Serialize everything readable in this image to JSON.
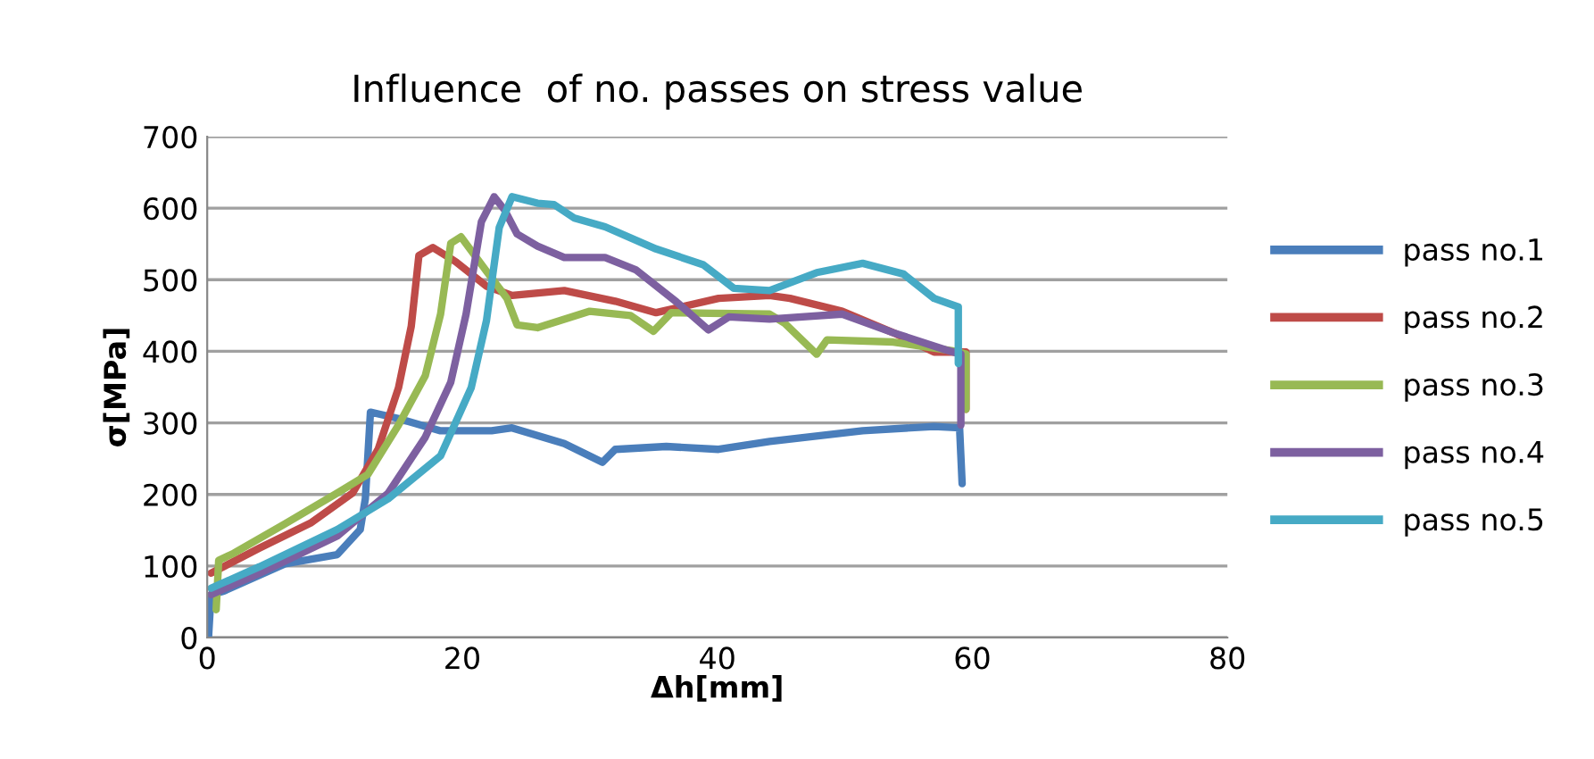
{
  "chart_data": {
    "type": "line",
    "title": "Influence  of no. passes on stress value",
    "xlabel": "Δh[mm]",
    "ylabel": "σ[MPa]",
    "xlim": [
      0,
      80
    ],
    "xticks": [
      0,
      20,
      40,
      60,
      80
    ],
    "ylim": [
      0,
      700
    ],
    "yticks": [
      0,
      100,
      200,
      300,
      400,
      500,
      600,
      700
    ],
    "grid": "y",
    "legend": "right",
    "marker": "none",
    "line_style": "solid",
    "series": [
      {
        "name": "pass no.1",
        "color": "#4a7ebb",
        "x": [
          0.1,
          0.3,
          1.3,
          6.1,
          10.2,
          12,
          12.4,
          12.8,
          15,
          18.3,
          22.3,
          23.9,
          28,
          31,
          32,
          36,
          40.1,
          44.1,
          51.4,
          57,
          59,
          59.2
        ],
        "values": [
          0,
          60,
          65,
          103,
          116,
          151,
          194,
          315,
          306,
          289,
          289,
          293,
          271,
          245,
          263,
          267,
          263,
          274,
          289,
          295,
          293,
          215
        ]
      },
      {
        "name": "pass no.2",
        "color": "#be4b48",
        "x": [
          0.3,
          4.1,
          8.1,
          11.4,
          13.4,
          15,
          16,
          16.6,
          17.7,
          19.5,
          21.9,
          23.9,
          28,
          32,
          35.2,
          40.1,
          44.1,
          45.7,
          49.8,
          53.8,
          57,
          59.5,
          59.5
        ],
        "values": [
          90,
          125,
          160,
          202,
          263,
          349,
          435,
          534,
          545,
          525,
          491,
          478,
          485,
          470,
          454,
          474,
          478,
          474,
          456,
          426,
          399,
          399,
          319
        ]
      },
      {
        "name": "pass no.3",
        "color": "#98b954",
        "x": [
          0.7,
          0.9,
          2.1,
          6.1,
          10.2,
          12.6,
          15,
          17.1,
          18.3,
          19.1,
          19.9,
          21.9,
          23.5,
          24.3,
          25.9,
          30,
          33.2,
          35,
          36.4,
          44.1,
          45.3,
          47.8,
          48.6,
          53.8,
          58.7,
          59.5,
          59.5
        ],
        "values": [
          39,
          108,
          118,
          159,
          202,
          228,
          297,
          366,
          452,
          551,
          560,
          512,
          474,
          437,
          433,
          456,
          450,
          428,
          454,
          452,
          439,
          396,
          416,
          413,
          400,
          396,
          319
        ]
      },
      {
        "name": "pass no.4",
        "color": "#7d60a0",
        "x": [
          0.3,
          4.1,
          10.2,
          14.2,
          17.1,
          19.1,
          20.3,
          21.5,
          22.5,
          23.3,
          24.3,
          25.9,
          28,
          31.2,
          33.6,
          36.8,
          39.3,
          40.9,
          44.1,
          49.8,
          53.8,
          57.9,
          59.1,
          59.1
        ],
        "values": [
          60,
          90,
          142,
          202,
          280,
          357,
          452,
          581,
          616,
          598,
          564,
          547,
          531,
          531,
          514,
          469,
          430,
          448,
          445,
          452,
          426,
          402,
          396,
          297
        ]
      },
      {
        "name": "pass no.5",
        "color": "#46aac5",
        "x": [
          0.3,
          4.1,
          10.2,
          14.2,
          18.3,
          20.7,
          21.9,
          22.9,
          23.9,
          25.9,
          27.2,
          28.8,
          31.2,
          35.2,
          38.9,
          41.3,
          44.1,
          47.8,
          51.4,
          54.6,
          57,
          58.9,
          58.9
        ],
        "values": [
          69,
          99,
          151,
          194,
          254,
          349,
          443,
          573,
          616,
          607,
          605,
          586,
          574,
          543,
          521,
          488,
          485,
          510,
          523,
          508,
          474,
          462,
          383
        ]
      }
    ]
  }
}
